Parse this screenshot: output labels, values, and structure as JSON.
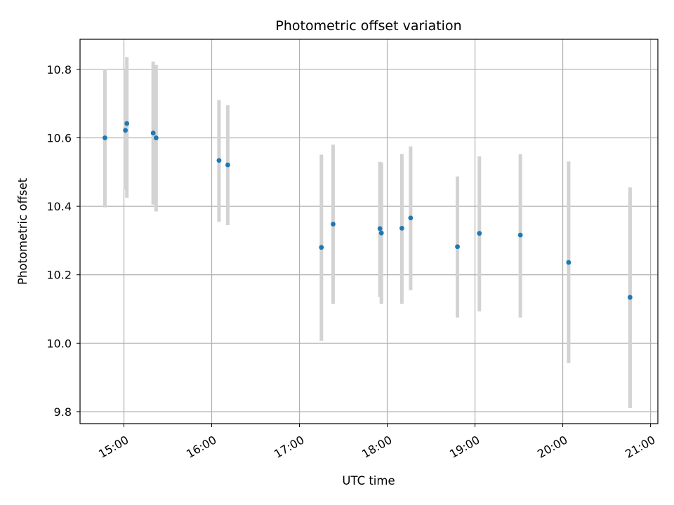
{
  "chart_data": {
    "type": "scatter",
    "title": "Photometric offset variation",
    "xlabel": "UTC time",
    "ylabel": "Photometric offset",
    "x_ticks": [
      "15:00",
      "16:00",
      "17:00",
      "18:00",
      "19:00",
      "20:00",
      "21:00"
    ],
    "y_ticks": [
      "9.8",
      "10.0",
      "10.2",
      "10.4",
      "10.6",
      "10.8"
    ],
    "xlim": [
      "14:30",
      "21:05"
    ],
    "ylim": [
      9.765,
      10.888
    ],
    "grid": true,
    "colors": {
      "point": "#1f77b4",
      "errorbar": "#d3d3d3",
      "grid": "#b0b0b0"
    },
    "points": [
      {
        "x": "14:47",
        "y": 10.6,
        "y_low": 10.397,
        "y_high": 10.801
      },
      {
        "x": "15:01",
        "y": 10.622,
        "y_low": 10.45,
        "y_high": 10.8
      },
      {
        "x": "15:02",
        "y": 10.642,
        "y_low": 10.425,
        "y_high": 10.836
      },
      {
        "x": "15:20",
        "y": 10.614,
        "y_low": 10.405,
        "y_high": 10.823
      },
      {
        "x": "15:22",
        "y": 10.6,
        "y_low": 10.385,
        "y_high": 10.813
      },
      {
        "x": "16:05",
        "y": 10.534,
        "y_low": 10.355,
        "y_high": 10.71
      },
      {
        "x": "16:11",
        "y": 10.521,
        "y_low": 10.345,
        "y_high": 10.695
      },
      {
        "x": "17:15",
        "y": 10.28,
        "y_low": 10.007,
        "y_high": 10.551
      },
      {
        "x": "17:23",
        "y": 10.348,
        "y_low": 10.115,
        "y_high": 10.58
      },
      {
        "x": "17:55",
        "y": 10.335,
        "y_low": 10.135,
        "y_high": 10.53
      },
      {
        "x": "17:56",
        "y": 10.322,
        "y_low": 10.115,
        "y_high": 10.528
      },
      {
        "x": "18:10",
        "y": 10.336,
        "y_low": 10.115,
        "y_high": 10.553
      },
      {
        "x": "18:16",
        "y": 10.366,
        "y_low": 10.155,
        "y_high": 10.575
      },
      {
        "x": "18:48",
        "y": 10.282,
        "y_low": 10.075,
        "y_high": 10.487
      },
      {
        "x": "19:03",
        "y": 10.321,
        "y_low": 10.093,
        "y_high": 10.546
      },
      {
        "x": "19:31",
        "y": 10.316,
        "y_low": 10.075,
        "y_high": 10.552
      },
      {
        "x": "20:04",
        "y": 10.236,
        "y_low": 9.942,
        "y_high": 10.531
      },
      {
        "x": "20:46",
        "y": 10.134,
        "y_low": 9.81,
        "y_high": 10.455
      }
    ]
  }
}
